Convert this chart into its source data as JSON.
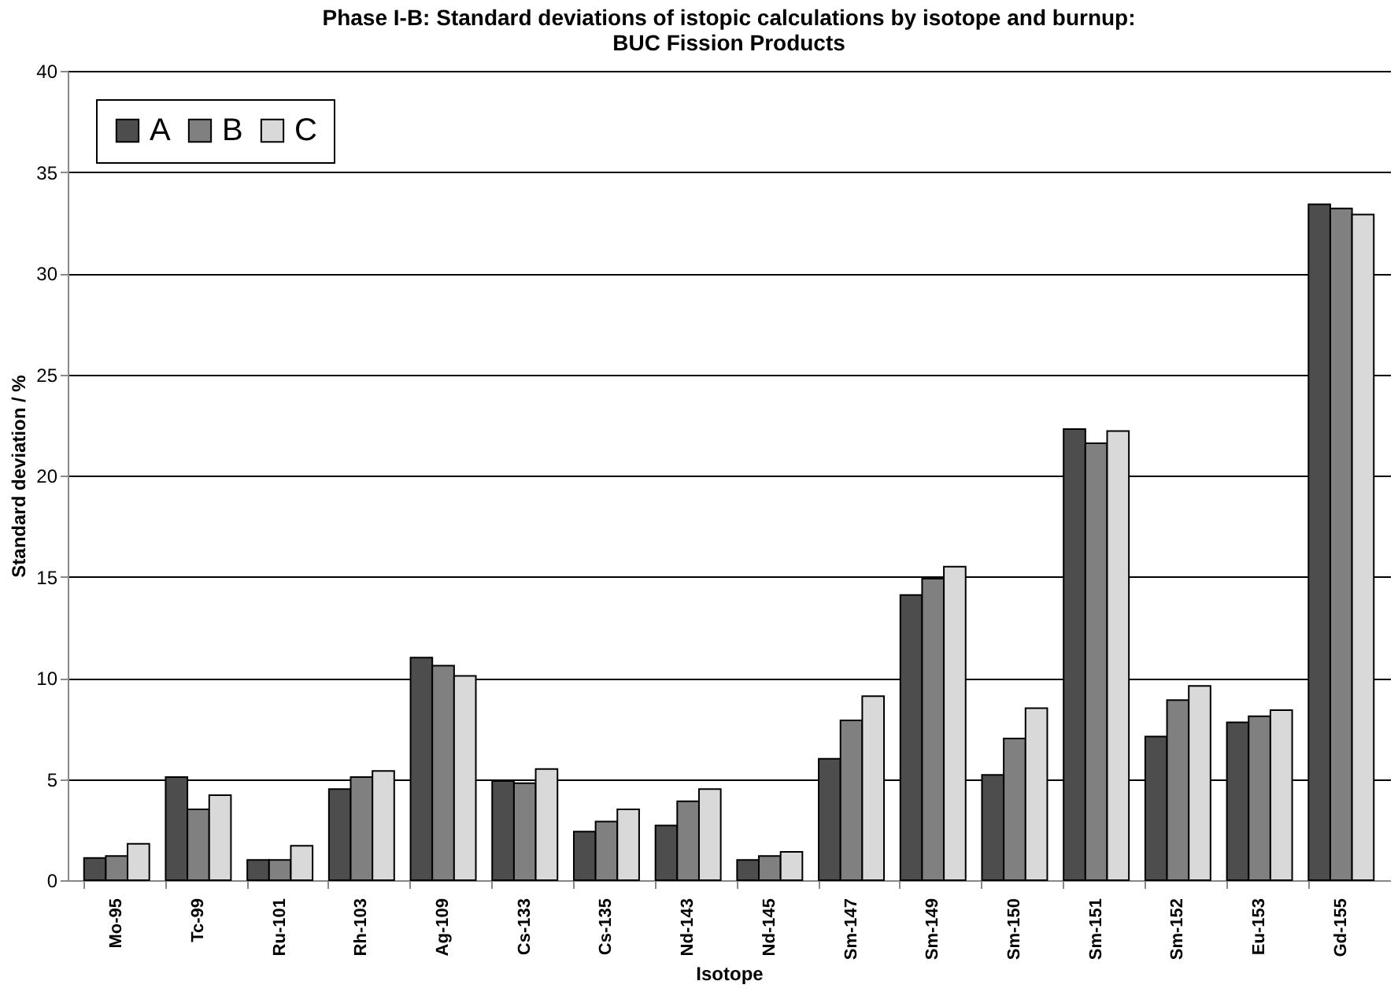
{
  "chart_data": {
    "type": "bar",
    "title": "Phase I-B: Standard deviations of istopic calculations by isotope and burnup:\nBUC Fission Products",
    "xlabel": "Isotope",
    "ylabel": "Standard deviation / %",
    "categories": [
      "Mo-95",
      "Tc-99",
      "Ru-101",
      "Rh-103",
      "Ag-109",
      "Cs-133",
      "Cs-135",
      "Nd-143",
      "Nd-145",
      "Sm-147",
      "Sm-149",
      "Sm-150",
      "Sm-151",
      "Sm-152",
      "Eu-153",
      "Gd-155"
    ],
    "series": [
      {
        "name": "A",
        "color": "#4d4d4d",
        "values": [
          1.1,
          5.1,
          1.0,
          4.5,
          11.0,
          4.9,
          2.4,
          2.7,
          1.0,
          6.0,
          14.1,
          5.2,
          22.3,
          7.1,
          7.8,
          33.4
        ]
      },
      {
        "name": "B",
        "color": "#808080",
        "values": [
          1.2,
          3.5,
          1.0,
          5.1,
          10.6,
          4.8,
          2.9,
          3.9,
          1.2,
          7.9,
          14.9,
          7.0,
          21.6,
          8.9,
          8.1,
          33.2
        ]
      },
      {
        "name": "C",
        "color": "#d9d9d9",
        "values": [
          1.8,
          4.2,
          1.7,
          5.4,
          10.1,
          5.5,
          3.5,
          4.5,
          1.4,
          9.1,
          15.5,
          8.5,
          22.2,
          9.6,
          8.4,
          32.9
        ]
      }
    ],
    "ylim": [
      0,
      40
    ],
    "yticks": [
      0,
      5,
      10,
      15,
      20,
      25,
      30,
      35,
      40
    ],
    "grid": "y",
    "legend": "top left"
  }
}
